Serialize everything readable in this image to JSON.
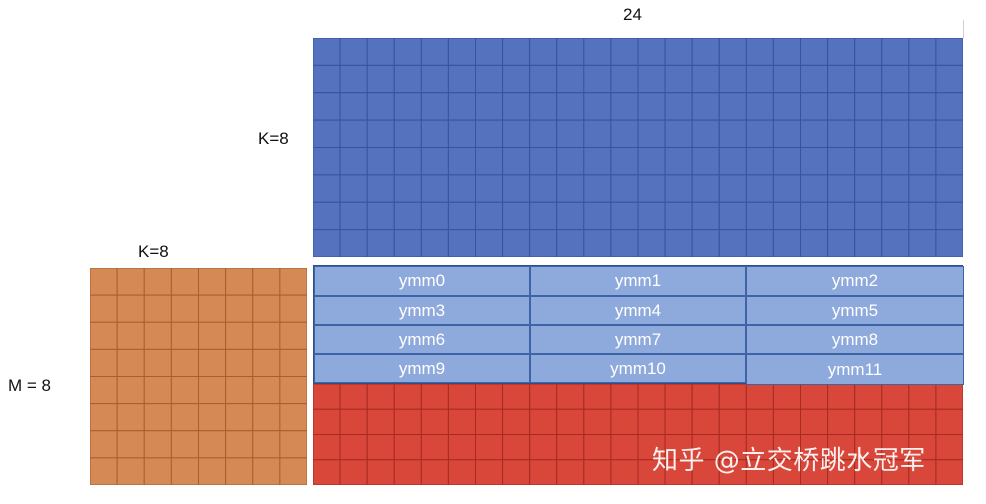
{
  "labels": {
    "top_n": "24",
    "k_left_of_b": "K=8",
    "k_above_a": "K=8",
    "m_left_of_a": "M = 8"
  },
  "matrices": {
    "b": {
      "rows": 8,
      "cols": 24,
      "color": "#5472bd",
      "line_color": "#3553a0"
    },
    "a": {
      "rows": 8,
      "cols": 8,
      "color": "#d58a55",
      "line_color": "#a85f2e"
    },
    "c": {
      "rows": 4,
      "cols": 24,
      "color": "#d9463a",
      "line_color": "#a82a20"
    }
  },
  "ymm": {
    "color": "#8ea9db",
    "text_color": "#ffffff",
    "rows": [
      [
        "ymm0",
        "ymm1",
        "ymm2"
      ],
      [
        "ymm3",
        "ymm4",
        "ymm5"
      ],
      [
        "ymm6",
        "ymm7",
        "ymm8"
      ],
      [
        "ymm9",
        "ymm10",
        "ymm11"
      ]
    ]
  },
  "watermark": "知乎 @立交桥跳水冠军"
}
